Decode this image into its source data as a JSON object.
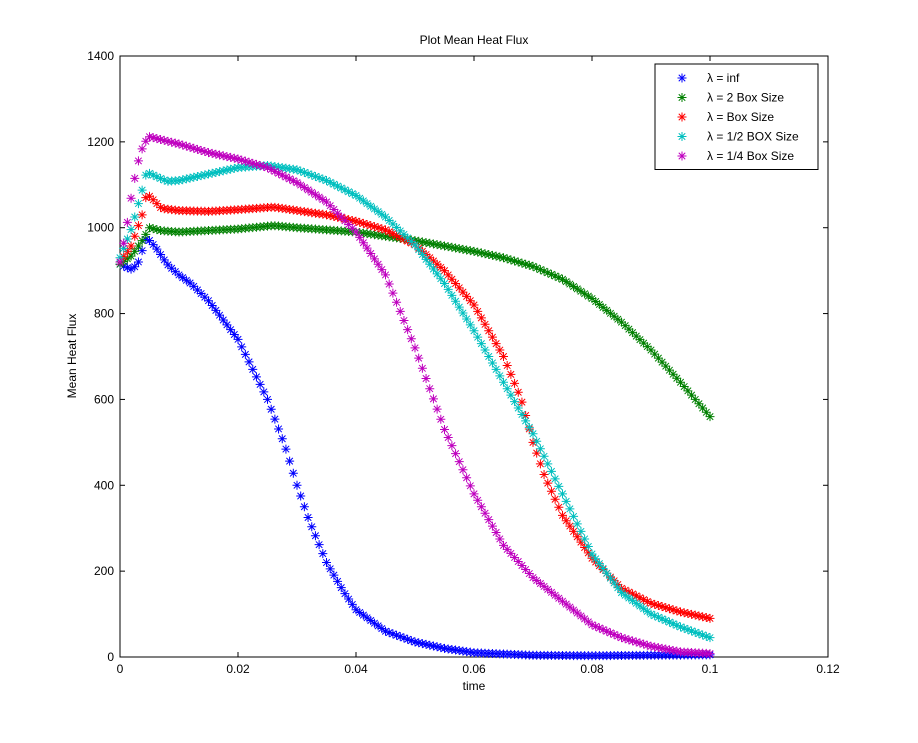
{
  "chart_data": {
    "type": "scatter",
    "title": "Plot Mean Heat Flux",
    "xlabel": "time",
    "ylabel": "Mean Heat Flux",
    "xlim": [
      0,
      0.12
    ],
    "ylim": [
      0,
      1400
    ],
    "xticks": [
      "0",
      "0.02",
      "0.04",
      "0.06",
      "0.08",
      "0.1",
      "0.12"
    ],
    "xtick_values": [
      0,
      0.02,
      0.04,
      0.06,
      0.08,
      0.1,
      0.12
    ],
    "yticks": [
      "0",
      "200",
      "400",
      "600",
      "800",
      "1000",
      "1200",
      "1400"
    ],
    "ytick_values": [
      0,
      200,
      400,
      600,
      800,
      1000,
      1200,
      1400
    ],
    "grid": false,
    "legend_position": "top-right",
    "marker": "*",
    "x_range": [
      0,
      0.1
    ],
    "points_per_series": 161,
    "series": [
      {
        "name": "λ = inf",
        "color": "#0000ff",
        "keypoints": [
          [
            0,
            915
          ],
          [
            0.001,
            908
          ],
          [
            0.002,
            903
          ],
          [
            0.003,
            915
          ],
          [
            0.0045,
            978
          ],
          [
            0.006,
            955
          ],
          [
            0.008,
            915
          ],
          [
            0.01,
            890
          ],
          [
            0.012,
            870
          ],
          [
            0.015,
            830
          ],
          [
            0.02,
            740
          ],
          [
            0.025,
            600
          ],
          [
            0.028,
            490
          ],
          [
            0.03,
            400
          ],
          [
            0.032,
            320
          ],
          [
            0.035,
            220
          ],
          [
            0.038,
            150
          ],
          [
            0.04,
            110
          ],
          [
            0.045,
            60
          ],
          [
            0.05,
            35
          ],
          [
            0.055,
            20
          ],
          [
            0.06,
            10
          ],
          [
            0.07,
            4
          ],
          [
            0.08,
            3
          ],
          [
            0.1,
            5
          ]
        ]
      },
      {
        "name": "λ = 2 Box Size",
        "color": "#008000",
        "keypoints": [
          [
            0,
            915
          ],
          [
            0.002,
            935
          ],
          [
            0.004,
            975
          ],
          [
            0.005,
            1000
          ],
          [
            0.007,
            993
          ],
          [
            0.01,
            990
          ],
          [
            0.02,
            997
          ],
          [
            0.026,
            1005
          ],
          [
            0.03,
            1000
          ],
          [
            0.04,
            990
          ],
          [
            0.05,
            970
          ],
          [
            0.06,
            945
          ],
          [
            0.065,
            930
          ],
          [
            0.07,
            910
          ],
          [
            0.075,
            880
          ],
          [
            0.08,
            835
          ],
          [
            0.085,
            780
          ],
          [
            0.09,
            715
          ],
          [
            0.095,
            640
          ],
          [
            0.1,
            560
          ]
        ]
      },
      {
        "name": "λ = Box Size",
        "color": "#ff0000",
        "keypoints": [
          [
            0,
            920
          ],
          [
            0.002,
            960
          ],
          [
            0.004,
            1040
          ],
          [
            0.0045,
            1080
          ],
          [
            0.006,
            1060
          ],
          [
            0.007,
            1045
          ],
          [
            0.01,
            1040
          ],
          [
            0.015,
            1038
          ],
          [
            0.02,
            1042
          ],
          [
            0.026,
            1048
          ],
          [
            0.03,
            1040
          ],
          [
            0.035,
            1030
          ],
          [
            0.04,
            1015
          ],
          [
            0.045,
            995
          ],
          [
            0.05,
            960
          ],
          [
            0.055,
            900
          ],
          [
            0.06,
            820
          ],
          [
            0.065,
            700
          ],
          [
            0.068,
            600
          ],
          [
            0.07,
            500
          ],
          [
            0.072,
            420
          ],
          [
            0.075,
            330
          ],
          [
            0.08,
            230
          ],
          [
            0.085,
            160
          ],
          [
            0.09,
            125
          ],
          [
            0.095,
            105
          ],
          [
            0.1,
            90
          ]
        ]
      },
      {
        "name": "λ = 1/2 BOX Size",
        "color": "#00bfbf",
        "keypoints": [
          [
            0,
            930
          ],
          [
            0.002,
            1000
          ],
          [
            0.004,
            1100
          ],
          [
            0.0045,
            1130
          ],
          [
            0.006,
            1120
          ],
          [
            0.008,
            1108
          ],
          [
            0.01,
            1110
          ],
          [
            0.015,
            1125
          ],
          [
            0.02,
            1140
          ],
          [
            0.025,
            1145
          ],
          [
            0.03,
            1135
          ],
          [
            0.035,
            1110
          ],
          [
            0.04,
            1075
          ],
          [
            0.045,
            1025
          ],
          [
            0.05,
            960
          ],
          [
            0.055,
            870
          ],
          [
            0.06,
            760
          ],
          [
            0.065,
            640
          ],
          [
            0.07,
            520
          ],
          [
            0.075,
            380
          ],
          [
            0.08,
            240
          ],
          [
            0.085,
            150
          ],
          [
            0.09,
            100
          ],
          [
            0.095,
            70
          ],
          [
            0.1,
            45
          ]
        ]
      },
      {
        "name": "λ = 1/4 Box Size",
        "color": "#bf00bf",
        "keypoints": [
          [
            0,
            920
          ],
          [
            0.001,
            990
          ],
          [
            0.002,
            1080
          ],
          [
            0.003,
            1150
          ],
          [
            0.004,
            1195
          ],
          [
            0.005,
            1212
          ],
          [
            0.007,
            1205
          ],
          [
            0.01,
            1195
          ],
          [
            0.015,
            1175
          ],
          [
            0.02,
            1160
          ],
          [
            0.025,
            1140
          ],
          [
            0.03,
            1105
          ],
          [
            0.035,
            1060
          ],
          [
            0.04,
            990
          ],
          [
            0.045,
            890
          ],
          [
            0.05,
            720
          ],
          [
            0.055,
            530
          ],
          [
            0.06,
            380
          ],
          [
            0.065,
            260
          ],
          [
            0.07,
            185
          ],
          [
            0.075,
            130
          ],
          [
            0.08,
            75
          ],
          [
            0.085,
            45
          ],
          [
            0.09,
            25
          ],
          [
            0.095,
            12
          ],
          [
            0.1,
            8
          ]
        ]
      }
    ]
  }
}
